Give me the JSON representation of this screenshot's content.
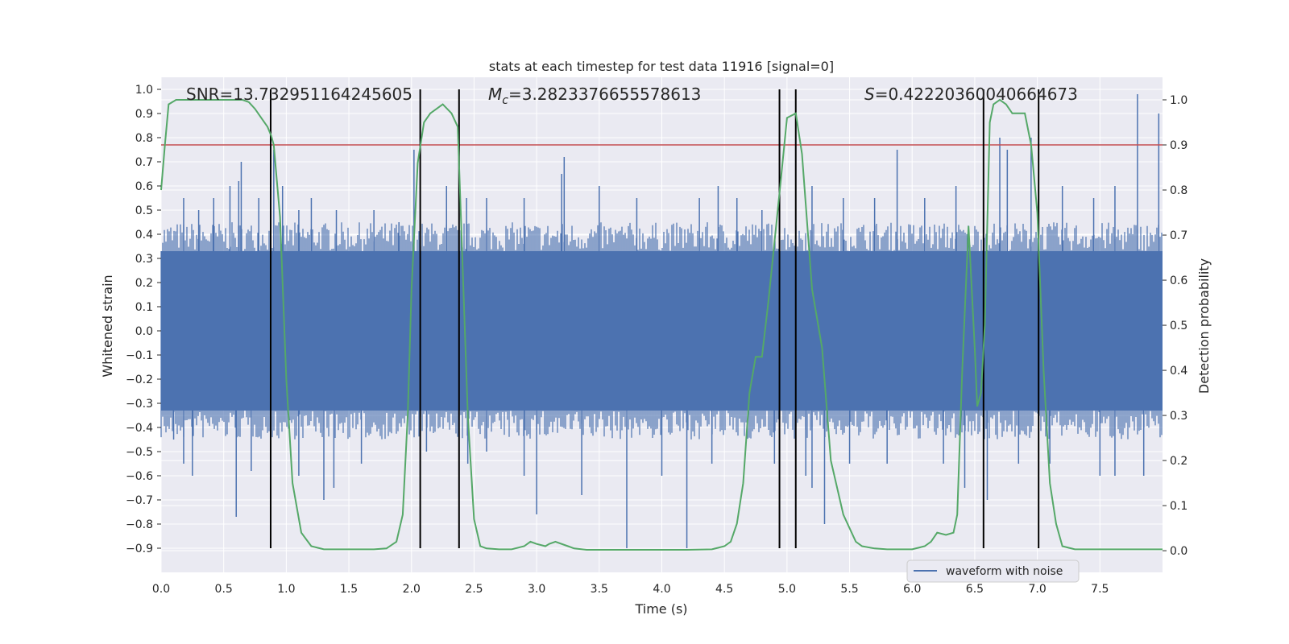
{
  "chart_data": {
    "type": "line",
    "title": "stats at each timestep for test data 11916 [signal=0]",
    "xlabel": "Time (s)",
    "ylabel": "Whitened strain",
    "y2label": "Detection probability",
    "xlim": [
      0.0,
      8.0
    ],
    "ylim": [
      -1.0,
      1.05
    ],
    "y2lim": [
      -0.048,
      1.05
    ],
    "x_ticks": [
      "0.0",
      "0.5",
      "1.0",
      "1.5",
      "2.0",
      "2.5",
      "3.0",
      "3.5",
      "4.0",
      "4.5",
      "5.0",
      "5.5",
      "6.0",
      "6.5",
      "7.0",
      "7.5"
    ],
    "y_ticks": [
      "1.0",
      "0.9",
      "0.8",
      "0.7",
      "0.6",
      "0.5",
      "0.4",
      "0.3",
      "0.2",
      "0.1",
      "0.0",
      "−0.1",
      "−0.2",
      "−0.3",
      "−0.4",
      "−0.5",
      "−0.6",
      "−0.7",
      "−0.8",
      "−0.9"
    ],
    "y2_ticks": [
      "1.0",
      "0.9",
      "0.8",
      "0.7",
      "0.6",
      "0.5",
      "0.4",
      "0.3",
      "0.2",
      "0.1",
      "0.0"
    ],
    "annotations": {
      "snr": "SNR=13.732951164245605",
      "mc_symbol": "M",
      "mc_subscript": "c",
      "mc_value": "=3.2823376655578613",
      "s_symbol": "S",
      "s_value": "=0.4222036004066467​3"
    },
    "legend": {
      "label": "waveform with noise",
      "placement": "lower-right"
    },
    "threshold": {
      "value": 0.9,
      "axis": "right",
      "color": "#c44e52"
    },
    "vertical_lines_x": [
      0.875,
      2.07,
      2.38,
      4.94,
      5.07,
      6.57,
      7.01
    ],
    "vertical_lines_range": [
      -0.9,
      1.0
    ],
    "series": [
      {
        "name": "waveform with noise",
        "axis": "left",
        "color": "#4c72b0",
        "dense_band": [
          -0.33,
          0.33
        ],
        "spikes_up": [
          [
            0.18,
            0.55
          ],
          [
            0.3,
            0.5
          ],
          [
            0.42,
            0.55
          ],
          [
            0.55,
            0.6
          ],
          [
            0.62,
            0.62
          ],
          [
            0.64,
            0.7
          ],
          [
            0.78,
            0.55
          ],
          [
            0.9,
            0.75
          ],
          [
            0.97,
            0.6
          ],
          [
            1.1,
            0.5
          ],
          [
            1.2,
            0.55
          ],
          [
            1.4,
            0.5
          ],
          [
            1.7,
            0.5
          ],
          [
            1.9,
            0.45
          ],
          [
            2.02,
            0.75
          ],
          [
            2.28,
            0.6
          ],
          [
            2.44,
            0.55
          ],
          [
            2.6,
            0.55
          ],
          [
            2.9,
            0.55
          ],
          [
            3.2,
            0.65
          ],
          [
            3.22,
            0.72
          ],
          [
            3.5,
            0.6
          ],
          [
            3.8,
            0.55
          ],
          [
            4.3,
            0.55
          ],
          [
            4.45,
            0.6
          ],
          [
            4.6,
            0.55
          ],
          [
            4.8,
            0.5
          ],
          [
            5.2,
            0.6
          ],
          [
            5.45,
            0.55
          ],
          [
            5.7,
            0.55
          ],
          [
            5.88,
            0.75
          ],
          [
            6.1,
            0.55
          ],
          [
            6.35,
            0.6
          ],
          [
            6.7,
            0.8
          ],
          [
            6.76,
            0.75
          ],
          [
            6.95,
            0.8
          ],
          [
            7.2,
            0.6
          ],
          [
            7.45,
            0.55
          ],
          [
            7.62,
            0.6
          ],
          [
            7.8,
            0.98
          ],
          [
            7.97,
            0.9
          ]
        ],
        "spikes_down": [
          [
            0.1,
            -0.45
          ],
          [
            0.18,
            -0.55
          ],
          [
            0.25,
            -0.6
          ],
          [
            0.6,
            -0.77
          ],
          [
            0.72,
            -0.58
          ],
          [
            1.1,
            -0.6
          ],
          [
            1.3,
            -0.7
          ],
          [
            1.38,
            -0.65
          ],
          [
            1.6,
            -0.55
          ],
          [
            2.12,
            -0.5
          ],
          [
            2.45,
            -0.55
          ],
          [
            2.6,
            -0.5
          ],
          [
            2.9,
            -0.6
          ],
          [
            3.0,
            -0.76
          ],
          [
            3.36,
            -0.68
          ],
          [
            3.72,
            -0.9
          ],
          [
            4.0,
            -0.6
          ],
          [
            4.2,
            -0.9
          ],
          [
            4.4,
            -0.55
          ],
          [
            4.9,
            -0.55
          ],
          [
            5.15,
            -0.6
          ],
          [
            5.2,
            -0.65
          ],
          [
            5.3,
            -0.8
          ],
          [
            5.5,
            -0.55
          ],
          [
            5.8,
            -0.55
          ],
          [
            6.25,
            -0.55
          ],
          [
            6.42,
            -0.65
          ],
          [
            6.6,
            -0.7
          ],
          [
            6.85,
            -0.55
          ],
          [
            7.1,
            -0.55
          ],
          [
            7.5,
            -0.6
          ],
          [
            7.62,
            -0.6
          ],
          [
            7.85,
            -0.6
          ]
        ]
      },
      {
        "name": "detection probability",
        "axis": "right",
        "color": "#55a868",
        "x": [
          0.0,
          0.03,
          0.06,
          0.12,
          0.2,
          0.3,
          0.4,
          0.5,
          0.6,
          0.65,
          0.7,
          0.75,
          0.8,
          0.85,
          0.88,
          0.9,
          0.95,
          1.0,
          1.05,
          1.12,
          1.2,
          1.3,
          1.4,
          1.5,
          1.6,
          1.7,
          1.8,
          1.88,
          1.93,
          1.97,
          2.0,
          2.05,
          2.1,
          2.15,
          2.25,
          2.32,
          2.37,
          2.4,
          2.45,
          2.5,
          2.55,
          2.6,
          2.7,
          2.8,
          2.9,
          2.95,
          3.0,
          3.07,
          3.1,
          3.15,
          3.25,
          3.3,
          3.4,
          3.6,
          3.8,
          4.0,
          4.2,
          4.4,
          4.5,
          4.55,
          4.6,
          4.65,
          4.7,
          4.75,
          4.8,
          4.85,
          4.95,
          5.0,
          5.07,
          5.12,
          5.2,
          5.28,
          5.35,
          5.45,
          5.55,
          5.6,
          5.7,
          5.8,
          5.9,
          6.0,
          6.1,
          6.15,
          6.2,
          6.27,
          6.33,
          6.36,
          6.4,
          6.45,
          6.5,
          6.52,
          6.55,
          6.58,
          6.62,
          6.65,
          6.7,
          6.75,
          6.8,
          6.9,
          6.95,
          7.0,
          7.05,
          7.1,
          7.15,
          7.2,
          7.3,
          7.4,
          7.5,
          7.6,
          7.7,
          7.8,
          7.9,
          7.95,
          8.0
        ],
        "y": [
          0.8,
          0.9,
          0.99,
          1.0,
          1.0,
          1.0,
          1.0,
          1.0,
          1.0,
          1.0,
          0.995,
          0.98,
          0.96,
          0.94,
          0.92,
          0.9,
          0.74,
          0.38,
          0.15,
          0.04,
          0.01,
          0.003,
          0.003,
          0.003,
          0.003,
          0.003,
          0.005,
          0.02,
          0.08,
          0.3,
          0.58,
          0.86,
          0.95,
          0.97,
          0.99,
          0.97,
          0.94,
          0.7,
          0.3,
          0.07,
          0.01,
          0.005,
          0.003,
          0.003,
          0.01,
          0.02,
          0.015,
          0.01,
          0.015,
          0.02,
          0.01,
          0.005,
          0.002,
          0.002,
          0.002,
          0.002,
          0.002,
          0.003,
          0.01,
          0.02,
          0.06,
          0.15,
          0.35,
          0.43,
          0.43,
          0.55,
          0.82,
          0.96,
          0.97,
          0.88,
          0.58,
          0.45,
          0.2,
          0.08,
          0.02,
          0.01,
          0.005,
          0.003,
          0.003,
          0.003,
          0.01,
          0.02,
          0.04,
          0.035,
          0.04,
          0.08,
          0.4,
          0.72,
          0.45,
          0.32,
          0.35,
          0.5,
          0.95,
          0.99,
          1.0,
          0.99,
          0.97,
          0.97,
          0.9,
          0.75,
          0.4,
          0.15,
          0.06,
          0.01,
          0.003,
          0.003,
          0.003,
          0.003,
          0.003,
          0.003,
          0.003,
          0.003,
          0.003
        ]
      }
    ]
  }
}
